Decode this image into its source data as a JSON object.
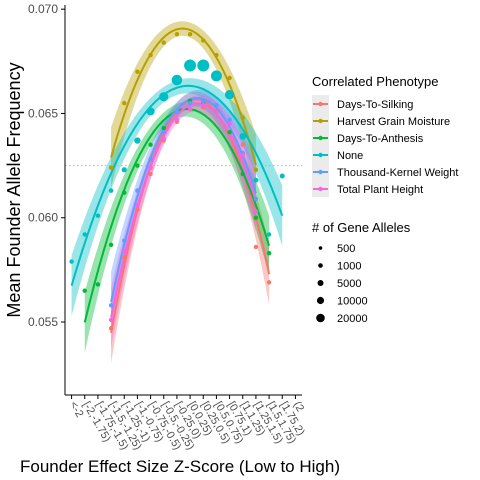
{
  "chart_data": {
    "type": "line",
    "title": "",
    "xlabel": "Founder Effect Size Z-Score (Low to High)",
    "ylabel": "Mean Founder Allele Frequency",
    "categories": [
      "<-2",
      "[-2,-1.75)",
      "[-1.75,-1.5)",
      "[-1.5,-1.25)",
      "[-1.25,-1)",
      "[-1,-0.75)",
      "[-0.75,-0.5)",
      "[-0.5,-0.25)",
      "[-0.25,0)",
      "[0,0.25)",
      "[0.25,0.5)",
      "[0.5,0.75)",
      "[0.75,1)",
      "[1,1.25)",
      "[1.25,1.5)",
      "[1.5,1.75)",
      "[1.75,2)",
      "(2"
    ],
    "ylim": [
      0.0515,
      0.0702
    ],
    "yticks": [
      0.055,
      0.06,
      0.065,
      0.07
    ],
    "reference_line": {
      "y": 0.0625,
      "style": "dotted"
    },
    "grid": false,
    "legend_placement": "right",
    "series": [
      {
        "name": "Days-To-Silking",
        "color": "#F8766D",
        "x": [
          3,
          4,
          5,
          6,
          7,
          8,
          9,
          10,
          11,
          12,
          13,
          14,
          15
        ],
        "y": [
          0.0547,
          0.0581,
          0.0604,
          0.0621,
          0.0637,
          0.0646,
          0.0652,
          0.0653,
          0.0651,
          0.0658,
          0.0635,
          0.0586,
          0.0569
        ]
      },
      {
        "name": "Harvest Grain Moisture",
        "color": "#B79F00",
        "x": [
          3,
          4,
          5,
          6,
          7,
          8,
          9,
          10,
          11,
          12,
          13,
          14
        ],
        "y": [
          0.0624,
          0.0655,
          0.067,
          0.0678,
          0.0684,
          0.0688,
          0.0688,
          0.0685,
          0.0678,
          0.0667,
          0.0648,
          0.0623
        ]
      },
      {
        "name": "Days-To-Anthesis",
        "color": "#00BA38",
        "x": [
          1,
          2,
          3,
          4,
          5,
          6,
          7,
          8,
          9,
          10,
          11,
          12,
          13,
          14,
          15
        ],
        "y": [
          0.0565,
          0.0568,
          0.0587,
          0.0612,
          0.0625,
          0.0635,
          0.0643,
          0.0651,
          0.0656,
          0.0655,
          0.0651,
          0.0641,
          0.0621,
          0.06,
          0.0583
        ]
      },
      {
        "name": "None",
        "color": "#00BFC4",
        "x": [
          0,
          1,
          2,
          3,
          4,
          5,
          6,
          7,
          8,
          9,
          10,
          11,
          12,
          13,
          14,
          15,
          16
        ],
        "y": [
          0.0579,
          0.0592,
          0.0601,
          0.0613,
          0.0623,
          0.0637,
          0.0651,
          0.0658,
          0.0666,
          0.0673,
          0.0673,
          0.0668,
          0.0659,
          0.0639,
          0.0618,
          0.0592,
          0.062
        ]
      },
      {
        "name": "Thousand-Kernel Weight",
        "color": "#619CFF",
        "x": [
          3,
          4,
          5,
          6,
          7,
          8,
          9,
          10,
          11,
          12,
          13,
          14
        ],
        "y": [
          0.0558,
          0.0589,
          0.0613,
          0.0628,
          0.0641,
          0.0651,
          0.0655,
          0.0656,
          0.0654,
          0.0647,
          0.0631,
          0.0609
        ]
      },
      {
        "name": "Total Plant Height",
        "color": "#F564E3",
        "x": [
          3,
          4,
          5,
          6,
          7,
          8,
          9,
          10,
          11,
          12,
          13,
          14
        ],
        "y": [
          0.0551,
          0.0584,
          0.0606,
          0.0624,
          0.0638,
          0.0647,
          0.0652,
          0.0654,
          0.0651,
          0.0645,
          0.063,
          0.0603
        ]
      }
    ],
    "size_legend": {
      "title": "# of Gene Alleles",
      "entries": [
        {
          "label": "500",
          "value": 500
        },
        {
          "label": "1000",
          "value": 1000
        },
        {
          "label": "5000",
          "value": 5000
        },
        {
          "label": "10000",
          "value": 10000
        },
        {
          "label": "20000",
          "value": 20000
        }
      ]
    },
    "color_legend_title": "Correlated Phenotype"
  }
}
